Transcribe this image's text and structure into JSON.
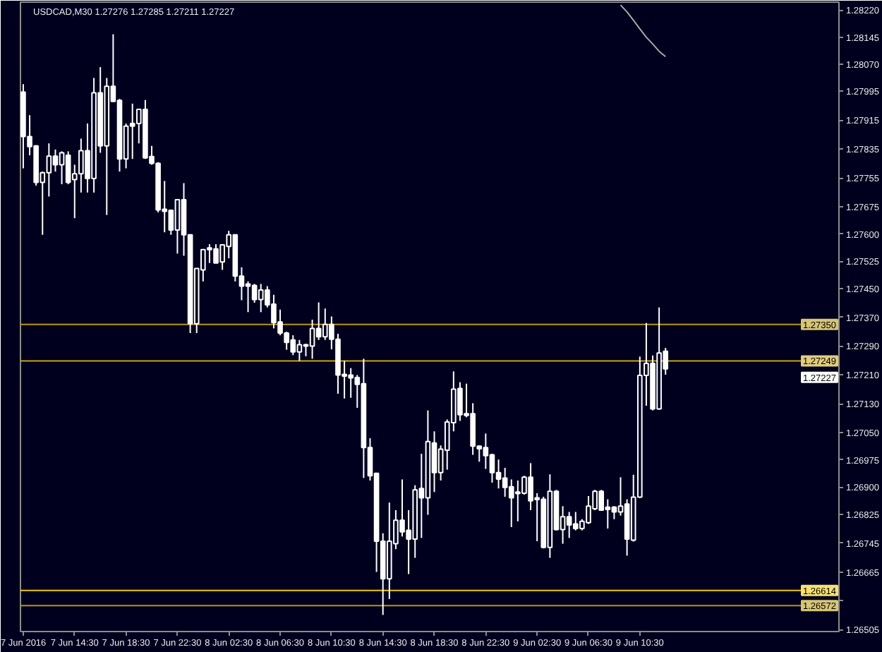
{
  "chart_data": {
    "type": "candlestick",
    "title": "USDCAD,M30 1.27276 1.27285 1.27211 1.27227",
    "color": "#ffffff",
    "x": [
      "2016-06-07T10:30",
      "2016-06-07T11:00",
      "2016-06-07T11:30",
      "2016-06-07T12:00",
      "2016-06-07T12:30",
      "2016-06-07T13:00",
      "2016-06-07T13:30",
      "2016-06-07T14:00",
      "2016-06-07T14:30",
      "2016-06-07T15:00",
      "2016-06-07T15:30",
      "2016-06-07T16:00",
      "2016-06-07T16:30",
      "2016-06-07T17:00",
      "2016-06-07T17:30",
      "2016-06-07T18:00",
      "2016-06-07T18:30",
      "2016-06-07T19:00",
      "2016-06-07T19:30",
      "2016-06-07T20:00",
      "2016-06-07T20:30",
      "2016-06-07T21:00",
      "2016-06-07T21:30",
      "2016-06-07T22:00",
      "2016-06-07T22:30",
      "2016-06-07T23:00",
      "2016-06-07T23:30",
      "2016-06-08T00:00",
      "2016-06-08T00:30",
      "2016-06-08T01:00",
      "2016-06-08T01:30",
      "2016-06-08T02:00",
      "2016-06-08T02:30",
      "2016-06-08T03:00",
      "2016-06-08T03:30",
      "2016-06-08T04:00",
      "2016-06-08T04:30",
      "2016-06-08T05:00",
      "2016-06-08T05:30",
      "2016-06-08T06:00",
      "2016-06-08T06:30",
      "2016-06-08T07:00",
      "2016-06-08T07:30",
      "2016-06-08T08:00",
      "2016-06-08T08:30",
      "2016-06-08T09:00",
      "2016-06-08T09:30",
      "2016-06-08T10:00",
      "2016-06-08T10:30",
      "2016-06-08T11:00",
      "2016-06-08T11:30",
      "2016-06-08T12:00",
      "2016-06-08T12:30",
      "2016-06-08T13:00",
      "2016-06-08T13:30",
      "2016-06-08T14:00",
      "2016-06-08T14:30",
      "2016-06-08T15:00",
      "2016-06-08T15:30",
      "2016-06-08T16:00",
      "2016-06-08T16:30",
      "2016-06-08T17:00",
      "2016-06-08T17:30",
      "2016-06-08T18:00",
      "2016-06-08T18:30",
      "2016-06-08T19:00",
      "2016-06-08T19:30",
      "2016-06-08T20:00",
      "2016-06-08T20:30",
      "2016-06-08T21:00",
      "2016-06-08T21:30",
      "2016-06-08T22:00",
      "2016-06-08T22:30",
      "2016-06-08T23:00",
      "2016-06-08T23:30",
      "2016-06-09T00:00",
      "2016-06-09T00:30",
      "2016-06-09T01:00",
      "2016-06-09T01:30",
      "2016-06-09T02:00",
      "2016-06-09T02:30",
      "2016-06-09T03:00",
      "2016-06-09T03:30",
      "2016-06-09T04:00",
      "2016-06-09T04:30",
      "2016-06-09T05:00",
      "2016-06-09T05:30",
      "2016-06-09T06:00",
      "2016-06-09T06:30",
      "2016-06-09T07:00",
      "2016-06-09T07:30",
      "2016-06-09T08:00",
      "2016-06-09T08:30",
      "2016-06-09T09:00",
      "2016-06-09T09:30",
      "2016-06-09T10:00",
      "2016-06-09T10:30",
      "2016-06-09T11:00",
      "2016-06-09T11:30",
      "2016-06-09T12:00",
      "2016-06-09T12:30"
    ],
    "ohlc": [
      [
        1.27993,
        1.28015,
        1.27782,
        1.2787
      ],
      [
        1.2787,
        1.27929,
        1.27818,
        1.27842
      ],
      [
        1.27844,
        1.27846,
        1.27734,
        1.27743
      ],
      [
        1.27743,
        1.27773,
        1.27598,
        1.2777
      ],
      [
        1.2777,
        1.27851,
        1.27704,
        1.27816
      ],
      [
        1.27816,
        1.27834,
        1.27773,
        1.27792
      ],
      [
        1.27792,
        1.27829,
        1.27738,
        1.27825
      ],
      [
        1.27818,
        1.27829,
        1.27738,
        1.27743
      ],
      [
        1.27751,
        1.27792,
        1.27644,
        1.27767
      ],
      [
        1.27767,
        1.27864,
        1.27715,
        1.27831
      ],
      [
        1.27831,
        1.27906,
        1.27715,
        1.27754
      ],
      [
        1.27754,
        1.28032,
        1.27715,
        1.27991
      ],
      [
        1.27991,
        1.28062,
        1.27825,
        1.27844
      ],
      [
        1.27844,
        1.28032,
        1.27653,
        1.28009
      ],
      [
        1.28009,
        1.28153,
        1.27967,
        1.27967
      ],
      [
        1.2797,
        1.27974,
        1.27773,
        1.27808
      ],
      [
        1.27808,
        1.27906,
        1.27782,
        1.27899
      ],
      [
        1.27906,
        1.27961,
        1.27808,
        1.27899
      ],
      [
        1.27906,
        1.27945,
        1.27851,
        1.27945
      ],
      [
        1.27945,
        1.27971,
        1.27808,
        1.27811
      ],
      [
        1.27815,
        1.27844,
        1.27792,
        1.27796
      ],
      [
        1.27796,
        1.27799,
        1.2766,
        1.27667
      ],
      [
        1.27669,
        1.27747,
        1.27605,
        1.27663
      ],
      [
        1.27666,
        1.27666,
        1.27598,
        1.27611
      ],
      [
        1.27611,
        1.27695,
        1.27546,
        1.27695
      ],
      [
        1.27695,
        1.27741,
        1.2754,
        1.27598
      ],
      [
        1.27598,
        1.27598,
        1.27326,
        1.27352
      ],
      [
        1.27352,
        1.27505,
        1.27326,
        1.27505
      ],
      [
        1.27501,
        1.27557,
        1.27469,
        1.27557
      ],
      [
        1.27562,
        1.27572,
        1.2752,
        1.27557
      ],
      [
        1.27559,
        1.27572,
        1.2752,
        1.2752
      ],
      [
        1.27523,
        1.27572,
        1.27501,
        1.2757
      ],
      [
        1.27566,
        1.27609,
        1.27533,
        1.27598
      ],
      [
        1.27598,
        1.27598,
        1.27469,
        1.27484
      ],
      [
        1.27484,
        1.27508,
        1.27417,
        1.27456
      ],
      [
        1.27462,
        1.27469,
        1.27384,
        1.27456
      ],
      [
        1.27458,
        1.27462,
        1.2741,
        1.27419
      ],
      [
        1.27419,
        1.27462,
        1.27384,
        1.27445
      ],
      [
        1.27445,
        1.27456,
        1.27397,
        1.27404
      ],
      [
        1.27406,
        1.27432,
        1.27339,
        1.27355
      ],
      [
        1.27357,
        1.27391,
        1.2732,
        1.27326
      ],
      [
        1.27326,
        1.2733,
        1.2728,
        1.273
      ],
      [
        1.27307,
        1.2732,
        1.27265,
        1.27274
      ],
      [
        1.27274,
        1.27307,
        1.27249,
        1.27294
      ],
      [
        1.27294,
        1.27296,
        1.27262,
        1.2729
      ],
      [
        1.2729,
        1.27363,
        1.27255,
        1.27339
      ],
      [
        1.27339,
        1.27411,
        1.27307,
        1.27316
      ],
      [
        1.27316,
        1.27394,
        1.27307,
        1.2735
      ],
      [
        1.2735,
        1.27372,
        1.27281,
        1.27309
      ],
      [
        1.27309,
        1.27324,
        1.27158,
        1.2721
      ],
      [
        1.27212,
        1.27249,
        1.27145,
        1.27207
      ],
      [
        1.2721,
        1.27229,
        1.27147,
        1.27202
      ],
      [
        1.27203,
        1.2721,
        1.27119,
        1.27184
      ],
      [
        1.27186,
        1.27255,
        1.26925,
        1.27009
      ],
      [
        1.27009,
        1.27035,
        1.26918,
        1.26931
      ],
      [
        1.26938,
        1.26938,
        1.26665,
        1.2675
      ],
      [
        1.2675,
        1.26772,
        1.26546,
        1.26646
      ],
      [
        1.26646,
        1.26857,
        1.2659,
        1.2675
      ],
      [
        1.26743,
        1.26836,
        1.26728,
        1.26808
      ],
      [
        1.26808,
        1.26921,
        1.26763,
        1.26776
      ],
      [
        1.2678,
        1.26836,
        1.26659,
        1.26756
      ],
      [
        1.26756,
        1.26905,
        1.26704,
        1.26892
      ],
      [
        1.26896,
        1.26992,
        1.26759,
        1.2687
      ],
      [
        1.2687,
        1.27112,
        1.26823,
        1.27026
      ],
      [
        1.27022,
        1.27054,
        1.26886,
        1.2694
      ],
      [
        1.2694,
        1.27015,
        1.26918,
        1.27005
      ],
      [
        1.27002,
        1.27087,
        1.26948,
        1.2708
      ],
      [
        1.27078,
        1.2722,
        1.27054,
        1.27171
      ],
      [
        1.27173,
        1.2719,
        1.27083,
        1.271
      ],
      [
        1.27103,
        1.27186,
        1.27093,
        1.27098
      ],
      [
        1.27103,
        1.27132,
        1.26989,
        1.27013
      ],
      [
        1.27013,
        1.27015,
        1.2697,
        1.27006
      ],
      [
        1.27009,
        1.27048,
        1.2695,
        1.26987
      ],
      [
        1.26989,
        1.26992,
        1.26912,
        1.2694
      ],
      [
        1.2694,
        1.26976,
        1.26896,
        1.26922
      ],
      [
        1.26925,
        1.26953,
        1.26873,
        1.26899
      ],
      [
        1.26901,
        1.26921,
        1.26789,
        1.2687
      ],
      [
        1.26886,
        1.26918,
        1.26805,
        1.26882
      ],
      [
        1.26883,
        1.26931,
        1.26879,
        1.26927
      ],
      [
        1.26927,
        1.26966,
        1.26836,
        1.26862
      ],
      [
        1.2687,
        1.26883,
        1.2675,
        1.26865
      ],
      [
        1.26866,
        1.26873,
        1.2673,
        1.26733
      ],
      [
        1.26733,
        1.26935,
        1.26704,
        1.26888
      ],
      [
        1.26888,
        1.26892,
        1.2678,
        1.26782
      ],
      [
        1.26782,
        1.26847,
        1.26743,
        1.26818
      ],
      [
        1.26818,
        1.26831,
        1.26759,
        1.26795
      ],
      [
        1.26798,
        1.26831,
        1.2678,
        1.26785
      ],
      [
        1.26785,
        1.26811,
        1.2678,
        1.26805
      ],
      [
        1.26801,
        1.26875,
        1.26798,
        1.26847
      ],
      [
        1.2684,
        1.26892,
        1.26836,
        1.26888
      ],
      [
        1.26888,
        1.26892,
        1.26834,
        1.26836
      ],
      [
        1.26844,
        1.26866,
        1.26785,
        1.26838
      ],
      [
        1.26844,
        1.26847,
        1.26811,
        1.26831
      ],
      [
        1.26831,
        1.26927,
        1.26821,
        1.26847
      ],
      [
        1.26853,
        1.26866,
        1.2671,
        1.26756
      ],
      [
        1.26753,
        1.26934,
        1.26749,
        1.26872
      ],
      [
        1.26872,
        1.27261,
        1.2687,
        1.27209
      ],
      [
        1.27209,
        1.27354,
        1.27125,
        1.27242
      ],
      [
        1.27242,
        1.27264,
        1.27112,
        1.27116
      ],
      [
        1.27116,
        1.27397,
        1.27114,
        1.27271
      ],
      [
        1.27276,
        1.27285,
        1.27211,
        1.27227
      ]
    ],
    "series": [
      {
        "type": "line",
        "color": "#a8a8a8",
        "x": [
          "2016-06-09T09:00",
          "2016-06-09T09:30",
          "2016-06-09T10:00",
          "2016-06-09T10:30",
          "2016-06-09T11:00",
          "2016-06-09T11:30",
          "2016-06-09T12:00",
          "2016-06-09T12:30"
        ],
        "values": [
          1.28234,
          1.28215,
          1.28192,
          1.28168,
          1.28145,
          1.28126,
          1.28106,
          1.28091
        ]
      }
    ],
    "xlim": [
      "2016-06-07T10:17",
      "2016-06-10T02:00"
    ],
    "xticks": [
      {
        "value": "2016-06-07T10:30",
        "label": "7 Jun 2016"
      },
      {
        "value": "2016-06-07T14:30",
        "label": "7 Jun 14:30"
      },
      {
        "value": "2016-06-07T18:30",
        "label": "7 Jun 18:30"
      },
      {
        "value": "2016-06-07T22:30",
        "label": "7 Jun 22:30"
      },
      {
        "value": "2016-06-08T02:30",
        "label": "8 Jun 02:30"
      },
      {
        "value": "2016-06-08T06:30",
        "label": "8 Jun 06:30"
      },
      {
        "value": "2016-06-08T10:30",
        "label": "8 Jun 10:30"
      },
      {
        "value": "2016-06-08T14:30",
        "label": "8 Jun 14:30"
      },
      {
        "value": "2016-06-08T18:30",
        "label": "8 Jun 18:30"
      },
      {
        "value": "2016-06-08T22:30",
        "label": "8 Jun 22:30"
      },
      {
        "value": "2016-06-09T02:30",
        "label": "9 Jun 02:30"
      },
      {
        "value": "2016-06-09T06:30",
        "label": "9 Jun 06:30"
      },
      {
        "value": "2016-06-09T10:30",
        "label": "9 Jun 10:30"
      }
    ],
    "ylim": [
      1.265,
      1.28242
    ],
    "yticks": [
      {
        "value": 1.2822,
        "label": "1.28220"
      },
      {
        "value": 1.28145,
        "label": "1.28145"
      },
      {
        "value": 1.2807,
        "label": "1.28070"
      },
      {
        "value": 1.27995,
        "label": "1.27995"
      },
      {
        "value": 1.27915,
        "label": "1.27915"
      },
      {
        "value": 1.27835,
        "label": "1.27835"
      },
      {
        "value": 1.27755,
        "label": "1.27755"
      },
      {
        "value": 1.27675,
        "label": "1.27675"
      },
      {
        "value": 1.276,
        "label": "1.27600"
      },
      {
        "value": 1.27525,
        "label": "1.27525"
      },
      {
        "value": 1.2745,
        "label": "1.27450"
      },
      {
        "value": 1.2737,
        "label": "1.27370"
      },
      {
        "value": 1.2729,
        "label": "1.27290"
      },
      {
        "value": 1.2721,
        "label": "1.27210"
      },
      {
        "value": 1.2713,
        "label": "1.27130"
      },
      {
        "value": 1.2705,
        "label": "1.27050"
      },
      {
        "value": 1.26975,
        "label": "1.26975"
      },
      {
        "value": 1.269,
        "label": "1.26900"
      },
      {
        "value": 1.26825,
        "label": "1.26825"
      },
      {
        "value": 1.26745,
        "label": "1.26745"
      },
      {
        "value": 1.26665,
        "label": "1.26665"
      },
      {
        "value": 1.26585,
        "label": null
      },
      {
        "value": 1.26505,
        "label": "1.26505"
      }
    ],
    "ref_lines": [
      {
        "axis": "y",
        "value": 1.2735,
        "label": "1.27350",
        "color": "#b8960b"
      },
      {
        "axis": "y",
        "value": 1.27249,
        "label": "1.27249",
        "color": "#c8a415"
      },
      {
        "axis": "y",
        "value": 1.26614,
        "label": "1.26614",
        "color": "#f0c800"
      },
      {
        "axis": "y",
        "value": 1.26572,
        "label": "1.26572",
        "color": "#b8960b"
      }
    ],
    "annotations": [
      "1.27227"
    ]
  }
}
